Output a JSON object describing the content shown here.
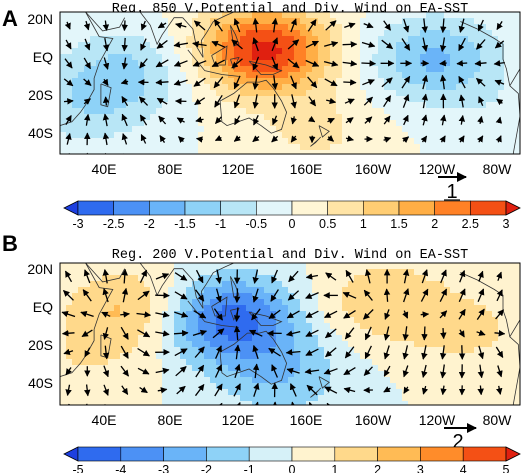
{
  "panels": [
    {
      "label": "A",
      "title": "Reg. 850 V.Potential and Div. Wind on  EA-SST",
      "lat_labels": [
        "20N",
        "EQ",
        "20S",
        "40S"
      ],
      "lon_labels": [
        "40E",
        "80E",
        "120E",
        "160E",
        "160W",
        "120W",
        "80W"
      ],
      "ref_vector": "1",
      "colorbar_ticks": [
        "-3",
        "-2.5",
        "-2",
        "-1.5",
        "-1",
        "-0.5",
        "0",
        "0.5",
        "1",
        "1.5",
        "2",
        "2.5",
        "3"
      ],
      "colorbar_colors": [
        "#1d3fe0",
        "#2f6bef",
        "#4c91f5",
        "#6ab4f8",
        "#8ed2f7",
        "#b8e6f6",
        "#e3f6fa",
        "#fff6d6",
        "#ffe4a6",
        "#ffcd73",
        "#ffae45",
        "#ff8126",
        "#f45015",
        "#e02010"
      ],
      "field_centers": [
        {
          "lon": 140,
          "lat": 5,
          "value": 3.2
        },
        {
          "lon": 60,
          "lat": -5,
          "value": -1.0
        },
        {
          "lon": 35,
          "lat": -25,
          "value": -0.8
        },
        {
          "lon": -120,
          "lat": 0,
          "value": -1.6
        },
        {
          "lon": 170,
          "lat": -38,
          "value": 0.6
        },
        {
          "lon": -70,
          "lat": -35,
          "value": -0.4
        }
      ],
      "arrow_rows": [
        "20N",
        "10N",
        "EQ",
        "10S",
        "20S",
        "30S",
        "40S",
        "50S"
      ]
    },
    {
      "label": "B",
      "title": "Reg. 200 V.Potential and Div. Wind on  EA-SST",
      "lat_labels": [
        "20N",
        "EQ",
        "20S",
        "40S"
      ],
      "lon_labels": [
        "40E",
        "80E",
        "120E",
        "160E",
        "160W",
        "120W",
        "80W"
      ],
      "ref_vector": "2",
      "colorbar_ticks": [
        "-5",
        "-4",
        "-3",
        "-2",
        "-1",
        "0",
        "1",
        "2",
        "3",
        "4",
        "5"
      ],
      "colorbar_colors": [
        "#1d3fe0",
        "#2f6bef",
        "#4c91f5",
        "#6ab4f8",
        "#8ed2f7",
        "#d6f1f8",
        "#fff3cf",
        "#ffd98b",
        "#ffbb55",
        "#ff8c2a",
        "#f45015",
        "#e02010"
      ],
      "field_centers": [
        {
          "lon": 120,
          "lat": -5,
          "value": -4.6
        },
        {
          "lon": 60,
          "lat": 0,
          "value": 2.2
        },
        {
          "lon": -150,
          "lat": 5,
          "value": 1.8
        },
        {
          "lon": -100,
          "lat": -10,
          "value": 1.2
        },
        {
          "lon": 150,
          "lat": -35,
          "value": -1.8
        },
        {
          "lon": 30,
          "lat": -30,
          "value": 0.8
        }
      ],
      "arrow_rows": [
        "20N",
        "10N",
        "EQ",
        "10S",
        "20S",
        "30S",
        "40S",
        "50S"
      ]
    }
  ]
}
